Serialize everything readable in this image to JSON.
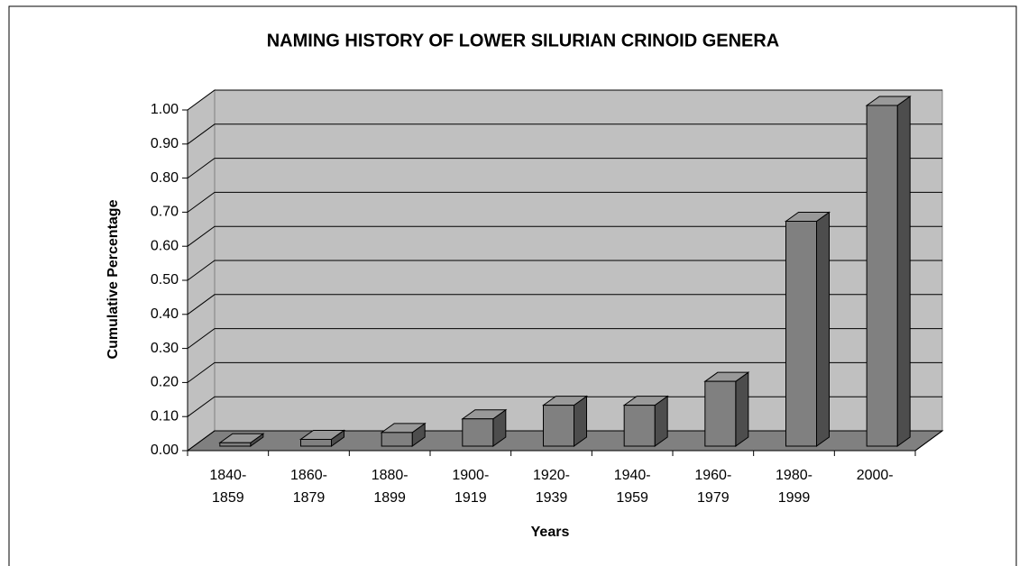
{
  "chart_data": {
    "type": "bar3d",
    "title": "NAMING HISTORY OF LOWER SILURIAN CRINOID GENERA",
    "y_label": "Cumulative Percentage",
    "x_label": "Years",
    "categories": [
      "1840-1859",
      "1860-1879",
      "1880-1899",
      "1900-1919",
      "1920-1939",
      "1940-1959",
      "1960-1979",
      "1980-1999",
      "2000-"
    ],
    "values": [
      0.01,
      0.02,
      0.04,
      0.08,
      0.12,
      0.12,
      0.19,
      0.66,
      1.0
    ],
    "color": "#808080",
    "ylim": [
      0,
      1
    ],
    "yticks": [
      {
        "value": 0,
        "label": "0.00"
      },
      {
        "value": 0.1,
        "label": "0.10"
      },
      {
        "value": 0.2,
        "label": "0.20"
      },
      {
        "value": 0.3,
        "label": "0.30"
      },
      {
        "value": 0.4,
        "label": "0.40"
      },
      {
        "value": 0.5,
        "label": "0.50"
      },
      {
        "value": 0.6,
        "label": "0.60"
      },
      {
        "value": 0.7,
        "label": "0.70"
      },
      {
        "value": 0.8,
        "label": "0.80"
      },
      {
        "value": 0.9,
        "label": "0.90"
      },
      {
        "value": 1,
        "label": "1.00"
      }
    ],
    "grid": true
  }
}
